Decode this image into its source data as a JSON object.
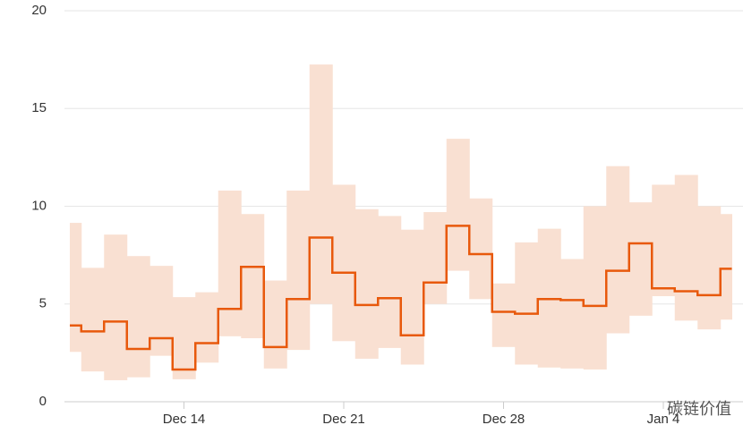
{
  "chart_data": {
    "type": "step-band",
    "categories": [
      null,
      null,
      null,
      null,
      null,
      "Dec 14",
      null,
      null,
      null,
      null,
      null,
      null,
      "Dec 21",
      null,
      null,
      null,
      null,
      null,
      null,
      "Dec 28",
      null,
      null,
      null,
      null,
      null,
      null,
      "Jan 4",
      null,
      null,
      null
    ],
    "series": [
      {
        "color": "#e8590c",
        "values": [
          3.9,
          3.6,
          4.1,
          2.7,
          3.25,
          1.65,
          3.0,
          4.75,
          6.9,
          2.8,
          5.25,
          8.4,
          6.6,
          4.95,
          5.3,
          3.4,
          6.1,
          9.0,
          7.55,
          4.6,
          4.5,
          5.25,
          5.2,
          4.9,
          6.7,
          8.1,
          5.8,
          5.65,
          5.45,
          6.8
        ]
      }
    ],
    "band": {
      "color": "#f9e0d2",
      "upper": [
        9.15,
        6.85,
        8.55,
        7.45,
        6.95,
        5.35,
        5.6,
        10.8,
        9.6,
        6.2,
        10.8,
        17.25,
        11.1,
        9.85,
        9.5,
        8.8,
        9.7,
        13.45,
        10.4,
        6.05,
        8.15,
        8.85,
        7.3,
        10.0,
        12.05,
        10.2,
        11.1,
        11.6,
        10.0,
        9.6
      ],
      "lower": [
        2.55,
        1.55,
        1.1,
        1.25,
        2.35,
        1.15,
        2.0,
        3.35,
        3.25,
        1.7,
        2.65,
        5.0,
        3.1,
        2.2,
        2.75,
        1.9,
        5.0,
        6.7,
        5.25,
        2.8,
        1.9,
        1.75,
        1.7,
        1.65,
        3.5,
        4.4,
        5.4,
        4.15,
        3.7,
        4.2
      ]
    },
    "ylim": [
      0,
      20
    ],
    "yticks": [
      0,
      5,
      10,
      15,
      20
    ],
    "grid": true,
    "watermark": "碳链价值"
  }
}
